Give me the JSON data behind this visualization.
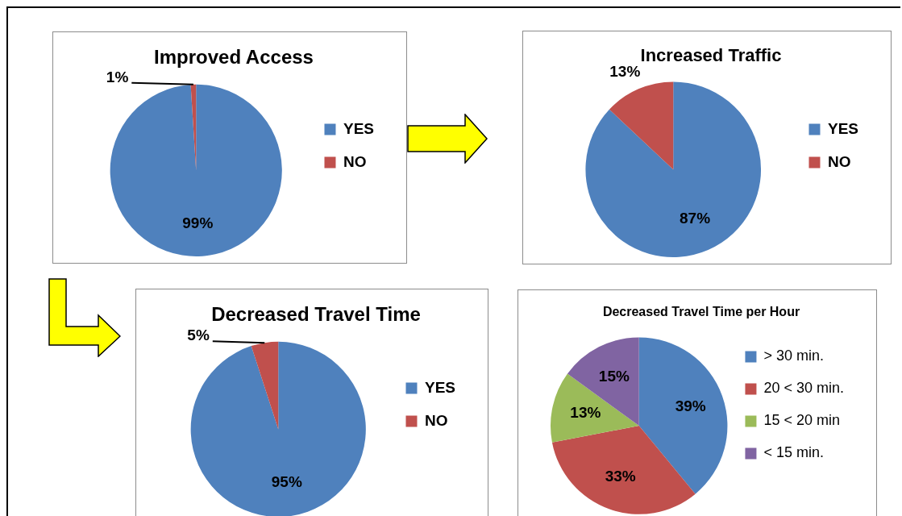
{
  "chart_data": [
    {
      "type": "pie",
      "title": "Improved Access",
      "categories": [
        "YES",
        "NO"
      ],
      "values": [
        99,
        1
      ],
      "colors": [
        "#4f81bd",
        "#c0504d"
      ],
      "value_labels": [
        "99%",
        "1%"
      ],
      "legend": "right"
    },
    {
      "type": "pie",
      "title": "Increased Traffic",
      "categories": [
        "YES",
        "NO"
      ],
      "values": [
        87,
        13
      ],
      "colors": [
        "#4f81bd",
        "#c0504d"
      ],
      "value_labels": [
        "87%",
        "13%"
      ],
      "legend": "right"
    },
    {
      "type": "pie",
      "title": "Decreased Travel Time",
      "categories": [
        "YES",
        "NO"
      ],
      "values": [
        95,
        5
      ],
      "colors": [
        "#4f81bd",
        "#c0504d"
      ],
      "value_labels": [
        "95%",
        "5%"
      ],
      "legend": "right"
    },
    {
      "type": "pie",
      "title": "Decreased Travel Time per Hour",
      "categories": [
        "> 30 min.",
        "20 < 30 min.",
        "15 < 20 min",
        "< 15 min."
      ],
      "values": [
        39,
        33,
        13,
        15
      ],
      "colors": [
        "#4f81bd",
        "#c0504d",
        "#9bbb59",
        "#8064a2"
      ],
      "value_labels": [
        "39%",
        "33%",
        "13%",
        "15%"
      ],
      "legend": "right"
    }
  ]
}
